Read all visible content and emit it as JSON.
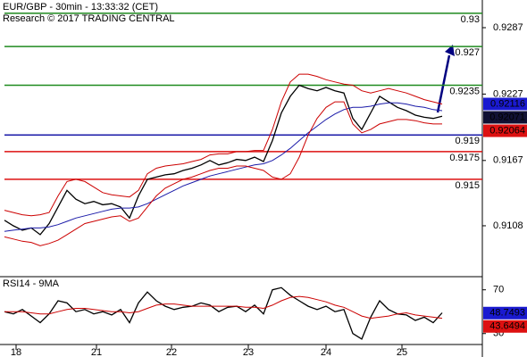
{
  "chart_data": [
    {
      "type": "line",
      "title": "EUR/GBP - 30min - 13:33:32 (CET)",
      "subtitle": "Research © 2017 TRADING CENTRAL",
      "x": [
        0,
        1,
        2,
        3,
        4,
        5,
        6,
        7,
        8,
        9,
        10,
        11,
        12,
        13,
        14,
        15,
        16,
        17,
        18,
        19,
        20,
        21,
        22,
        23,
        24,
        25,
        26,
        27,
        28,
        29,
        30,
        31,
        32,
        33,
        34,
        35,
        36,
        37,
        38,
        39,
        40,
        41,
        42,
        43,
        44,
        45,
        46,
        47,
        48,
        49
      ],
      "xlim": [
        -0.5,
        53.5
      ],
      "xticks": [
        {
          "value": 1.3,
          "label": "18"
        },
        {
          "value": 10.3,
          "label": "21"
        },
        {
          "value": 18.7,
          "label": "22"
        },
        {
          "value": 27.3,
          "label": "23"
        },
        {
          "value": 36,
          "label": "24"
        },
        {
          "value": 44.5,
          "label": "25"
        }
      ],
      "ylim": [
        0.9062,
        0.9312
      ],
      "yticks": [
        0.9108,
        0.9167,
        0.9227,
        0.9287
      ],
      "series": [
        {
          "color": "#000000",
          "values": [
            0.9113,
            0.9108,
            0.9104,
            0.9106,
            0.91,
            0.911,
            0.9125,
            0.914,
            0.9132,
            0.9128,
            0.913,
            0.9127,
            0.9128,
            0.9125,
            0.9115,
            0.9135,
            0.915,
            0.9152,
            0.9154,
            0.9155,
            0.9158,
            0.916,
            0.9163,
            0.9167,
            0.9163,
            0.9165,
            0.9168,
            0.9167,
            0.917,
            0.9166,
            0.9185,
            0.921,
            0.9225,
            0.9235,
            0.9232,
            0.923,
            0.9233,
            0.923,
            0.9228,
            0.9205,
            0.9195,
            0.921,
            0.9225,
            0.922,
            0.9215,
            0.9212,
            0.9208,
            0.9206,
            0.9205,
            0.9207
          ]
        },
        {
          "color": "#1a1aa8",
          "values": [
            0.9103,
            0.9104,
            0.9105,
            0.9106,
            0.9106,
            0.9107,
            0.9109,
            0.9112,
            0.9115,
            0.9117,
            0.9119,
            0.9121,
            0.9123,
            0.9124,
            0.9124,
            0.9125,
            0.9128,
            0.9132,
            0.9136,
            0.914,
            0.9144,
            0.9147,
            0.915,
            0.9153,
            0.9155,
            0.9157,
            0.9159,
            0.9161,
            0.9163,
            0.9164,
            0.9167,
            0.9172,
            0.9178,
            0.9185,
            0.9192,
            0.9198,
            0.9204,
            0.9209,
            0.9213,
            0.9215,
            0.9215,
            0.9216,
            0.9218,
            0.9219,
            0.9219,
            0.9218,
            0.9216,
            0.9215,
            0.9213,
            0.9212
          ]
        },
        {
          "color": "#cc0000",
          "values": [
            0.9122,
            0.912,
            0.9118,
            0.9117,
            0.9118,
            0.912,
            0.9135,
            0.9148,
            0.915,
            0.9148,
            0.9143,
            0.9138,
            0.9136,
            0.9135,
            0.9134,
            0.914,
            0.9155,
            0.916,
            0.9162,
            0.9163,
            0.9164,
            0.9166,
            0.9168,
            0.9172,
            0.9173,
            0.9173,
            0.9175,
            0.9175,
            0.9176,
            0.9176,
            0.9195,
            0.922,
            0.9238,
            0.9245,
            0.9245,
            0.9243,
            0.924,
            0.9238,
            0.9236,
            0.9235,
            0.923,
            0.9228,
            0.923,
            0.9232,
            0.923,
            0.9228,
            0.9225,
            0.9222,
            0.922,
            0.9218
          ]
        },
        {
          "color": "#cc0000",
          "values": [
            0.9098,
            0.9096,
            0.9094,
            0.9093,
            0.909,
            0.9092,
            0.9095,
            0.91,
            0.9105,
            0.911,
            0.9112,
            0.9114,
            0.9116,
            0.9117,
            0.9112,
            0.9115,
            0.9125,
            0.9135,
            0.9142,
            0.9146,
            0.915,
            0.9152,
            0.9155,
            0.9158,
            0.916,
            0.916,
            0.9162,
            0.9162,
            0.916,
            0.9158,
            0.9152,
            0.915,
            0.9155,
            0.917,
            0.919,
            0.9205,
            0.9215,
            0.922,
            0.922,
            0.92,
            0.9192,
            0.9195,
            0.92,
            0.9202,
            0.9204,
            0.9204,
            0.9203,
            0.9201,
            0.92,
            0.92
          ]
        }
      ],
      "levels": [
        {
          "value": 0.93,
          "color": "#1f8a1f"
        },
        {
          "value": 0.927,
          "color": "#1f8a1f"
        },
        {
          "value": 0.9235,
          "color": "#1f8a1f"
        },
        {
          "value": 0.919,
          "color": "#1a1aa8"
        },
        {
          "value": 0.9175,
          "color": "#dd1111"
        },
        {
          "value": 0.915,
          "color": "#dd1111"
        }
      ],
      "price_boxes": [
        {
          "value": 0.92116,
          "color": "#1a1ad0"
        },
        {
          "value": 0.92071,
          "color": "#111133"
        },
        {
          "value": 0.92064,
          "color": "#dd1111"
        }
      ]
    },
    {
      "type": "line",
      "title": "RSI14 - 9MA",
      "ylim": [
        20,
        82
      ],
      "yticks": [
        30,
        70
      ],
      "series": [
        {
          "color": "#000000",
          "values": [
            50,
            48,
            52,
            46,
            40,
            48,
            60,
            58,
            50,
            52,
            48,
            50,
            47,
            52,
            40,
            58,
            68,
            60,
            55,
            52,
            54,
            55,
            58,
            56,
            50,
            54,
            55,
            50,
            56,
            48,
            70,
            72,
            65,
            60,
            55,
            52,
            55,
            50,
            52,
            30,
            25,
            45,
            60,
            52,
            48,
            47,
            42,
            45,
            40,
            49
          ]
        },
        {
          "color": "#cc0000",
          "values": [
            50,
            50,
            50,
            49,
            48,
            48,
            50,
            52,
            53,
            53,
            52,
            51,
            50,
            50,
            49,
            50,
            53,
            56,
            57,
            57,
            56,
            55,
            55,
            55,
            55,
            55,
            55,
            54,
            54,
            53,
            56,
            60,
            63,
            64,
            63,
            61,
            59,
            56,
            54,
            50,
            46,
            44,
            45,
            46,
            48,
            49,
            47,
            46,
            45,
            44
          ]
        }
      ],
      "price_boxes": [
        {
          "value": 48.7493,
          "color": "#1a1ad0"
        },
        {
          "value": 43.6494,
          "color": "#dd1111"
        }
      ]
    }
  ]
}
